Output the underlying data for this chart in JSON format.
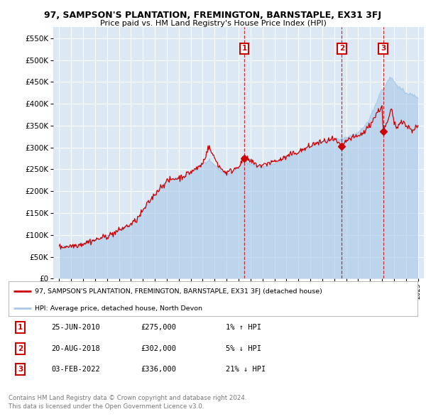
{
  "title": "97, SAMPSON'S PLANTATION, FREMINGTON, BARNSTAPLE, EX31 3FJ",
  "subtitle": "Price paid vs. HM Land Registry's House Price Index (HPI)",
  "legend_line1": "97, SAMPSON'S PLANTATION, FREMINGTON, BARNSTAPLE, EX31 3FJ (detached house)",
  "legend_line2": "HPI: Average price, detached house, North Devon",
  "footer1": "Contains HM Land Registry data © Crown copyright and database right 2024.",
  "footer2": "This data is licensed under the Open Government Licence v3.0.",
  "hpi_color": "#a8c8e8",
  "price_color": "#cc0000",
  "bg_color": "#dce9f5",
  "annotations": [
    {
      "num": "1",
      "date": "25-JUN-2010",
      "price": "£275,000",
      "pct": "1% ↑ HPI",
      "date_val": 2010.48,
      "price_val": 275000
    },
    {
      "num": "2",
      "date": "20-AUG-2018",
      "price": "£302,000",
      "pct": "5% ↓ HPI",
      "date_val": 2018.63,
      "price_val": 302000
    },
    {
      "num": "3",
      "date": "03-FEB-2022",
      "price": "£336,000",
      "pct": "21% ↓ HPI",
      "date_val": 2022.09,
      "price_val": 336000
    }
  ],
  "ylim": [
    0,
    575000
  ],
  "xlim_start": 1994.5,
  "xlim_end": 2025.5,
  "yticks": [
    0,
    50000,
    100000,
    150000,
    200000,
    250000,
    300000,
    350000,
    400000,
    450000,
    500000,
    550000
  ],
  "xticks": [
    1995,
    1996,
    1997,
    1998,
    1999,
    2000,
    2001,
    2002,
    2003,
    2004,
    2005,
    2006,
    2007,
    2008,
    2009,
    2010,
    2011,
    2012,
    2013,
    2014,
    2015,
    2016,
    2017,
    2018,
    2019,
    2020,
    2021,
    2022,
    2023,
    2024,
    2025
  ],
  "hpi_anchors": [
    [
      1995.0,
      72000
    ],
    [
      1995.5,
      73000
    ],
    [
      1996.0,
      75000
    ],
    [
      1996.5,
      77000
    ],
    [
      1997.0,
      80000
    ],
    [
      1997.5,
      84000
    ],
    [
      1998.0,
      88000
    ],
    [
      1998.5,
      92000
    ],
    [
      1999.0,
      97000
    ],
    [
      1999.5,
      103000
    ],
    [
      2000.0,
      110000
    ],
    [
      2000.5,
      118000
    ],
    [
      2001.0,
      124000
    ],
    [
      2001.5,
      135000
    ],
    [
      2002.0,
      155000
    ],
    [
      2002.5,
      175000
    ],
    [
      2003.0,
      193000
    ],
    [
      2003.5,
      210000
    ],
    [
      2004.0,
      222000
    ],
    [
      2004.5,
      228000
    ],
    [
      2005.0,
      230000
    ],
    [
      2005.5,
      235000
    ],
    [
      2006.0,
      243000
    ],
    [
      2006.5,
      252000
    ],
    [
      2007.0,
      262000
    ],
    [
      2007.5,
      268000
    ],
    [
      2008.0,
      260000
    ],
    [
      2008.5,
      248000
    ],
    [
      2009.0,
      238000
    ],
    [
      2009.5,
      245000
    ],
    [
      2010.0,
      252000
    ],
    [
      2010.48,
      272000
    ],
    [
      2011.0,
      262000
    ],
    [
      2011.5,
      258000
    ],
    [
      2012.0,
      255000
    ],
    [
      2012.5,
      258000
    ],
    [
      2013.0,
      262000
    ],
    [
      2013.5,
      268000
    ],
    [
      2014.0,
      275000
    ],
    [
      2014.5,
      282000
    ],
    [
      2015.0,
      288000
    ],
    [
      2015.5,
      295000
    ],
    [
      2016.0,
      302000
    ],
    [
      2016.5,
      308000
    ],
    [
      2017.0,
      313000
    ],
    [
      2017.5,
      316000
    ],
    [
      2018.0,
      318000
    ],
    [
      2018.63,
      318000
    ],
    [
      2019.0,
      322000
    ],
    [
      2019.5,
      328000
    ],
    [
      2020.0,
      332000
    ],
    [
      2020.5,
      345000
    ],
    [
      2021.0,
      368000
    ],
    [
      2021.5,
      400000
    ],
    [
      2022.0,
      435000
    ],
    [
      2022.09,
      428000
    ],
    [
      2022.5,
      455000
    ],
    [
      2022.8,
      460000
    ],
    [
      2023.0,
      450000
    ],
    [
      2023.5,
      435000
    ],
    [
      2024.0,
      425000
    ],
    [
      2024.5,
      420000
    ],
    [
      2025.0,
      415000
    ]
  ],
  "price_anchors": [
    [
      1995.0,
      72000
    ],
    [
      1995.5,
      73500
    ],
    [
      1996.0,
      75000
    ],
    [
      1996.5,
      77000
    ],
    [
      1997.0,
      80000
    ],
    [
      1997.5,
      85000
    ],
    [
      1998.0,
      88000
    ],
    [
      1998.5,
      93000
    ],
    [
      1999.0,
      97000
    ],
    [
      1999.5,
      103000
    ],
    [
      2000.0,
      110000
    ],
    [
      2000.5,
      118000
    ],
    [
      2001.0,
      124000
    ],
    [
      2001.5,
      135000
    ],
    [
      2002.0,
      155000
    ],
    [
      2002.5,
      175000
    ],
    [
      2003.0,
      193000
    ],
    [
      2003.5,
      210000
    ],
    [
      2004.0,
      222000
    ],
    [
      2004.5,
      228000
    ],
    [
      2005.0,
      230000
    ],
    [
      2005.5,
      236000
    ],
    [
      2006.0,
      244000
    ],
    [
      2006.5,
      252000
    ],
    [
      2007.0,
      263000
    ],
    [
      2007.5,
      302000
    ],
    [
      2008.0,
      275000
    ],
    [
      2008.5,
      252000
    ],
    [
      2009.0,
      242000
    ],
    [
      2009.5,
      248000
    ],
    [
      2010.0,
      258000
    ],
    [
      2010.48,
      275000
    ],
    [
      2011.0,
      268000
    ],
    [
      2011.5,
      260000
    ],
    [
      2012.0,
      258000
    ],
    [
      2012.5,
      265000
    ],
    [
      2013.0,
      268000
    ],
    [
      2013.5,
      272000
    ],
    [
      2014.0,
      278000
    ],
    [
      2014.5,
      285000
    ],
    [
      2015.0,
      290000
    ],
    [
      2015.5,
      296000
    ],
    [
      2016.0,
      303000
    ],
    [
      2016.5,
      310000
    ],
    [
      2017.0,
      312000
    ],
    [
      2017.5,
      316000
    ],
    [
      2018.0,
      318000
    ],
    [
      2018.63,
      302000
    ],
    [
      2019.0,
      315000
    ],
    [
      2019.5,
      322000
    ],
    [
      2020.0,
      325000
    ],
    [
      2020.5,
      335000
    ],
    [
      2021.0,
      352000
    ],
    [
      2021.5,
      375000
    ],
    [
      2022.0,
      395000
    ],
    [
      2022.09,
      336000
    ],
    [
      2022.5,
      360000
    ],
    [
      2022.8,
      390000
    ],
    [
      2023.0,
      355000
    ],
    [
      2023.3,
      345000
    ],
    [
      2023.6,
      365000
    ],
    [
      2024.0,
      350000
    ],
    [
      2024.5,
      340000
    ],
    [
      2025.0,
      348000
    ]
  ]
}
